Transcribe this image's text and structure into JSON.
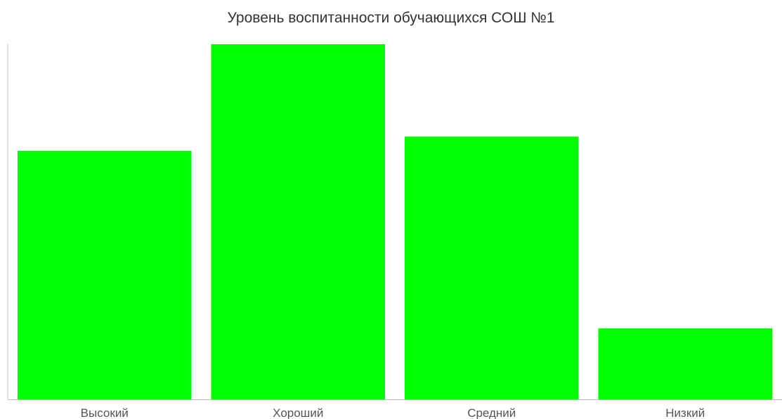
{
  "chart_data": {
    "type": "bar",
    "title": "Уровень воспитанности обучающихся СОШ №1",
    "xlabel": "",
    "ylabel": "",
    "categories": [
      "Высокий",
      "Хороший",
      "Средний",
      "Низкий"
    ],
    "values": [
      35,
      50,
      37,
      10
    ],
    "ylim": [
      0,
      50
    ],
    "grid": false,
    "legend": "none",
    "bar_color": "#00ff00",
    "axis_color": "#bbbbbb"
  }
}
